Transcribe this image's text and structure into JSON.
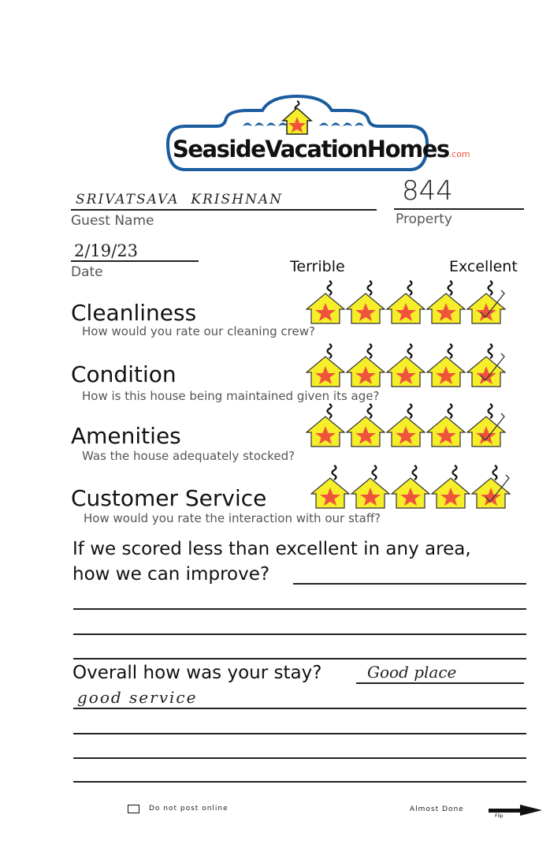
{
  "logo": {
    "brand": "SeasideVacationHomes",
    "suffix": ".com"
  },
  "guest": {
    "name_value": "SRIVATSAVA  KRISHNAN",
    "name_label": "Guest Name",
    "property_value": "844",
    "property_label": "Property",
    "date_value": "2/19/23",
    "date_label": "Date"
  },
  "scale": {
    "low": "Terrible",
    "high": "Excellent"
  },
  "ratings": [
    {
      "title": "Cleanliness",
      "question": "How would you rate our cleaning crew?",
      "score": 5,
      "max": 5
    },
    {
      "title": "Condition",
      "question": "How is this house being maintained given its age?",
      "score": 5,
      "max": 5
    },
    {
      "title": "Amenities",
      "question": "Was the house adequately stocked?",
      "score": 5,
      "max": 5
    },
    {
      "title": "Customer Service",
      "question": "How would you rate the interaction with our staff?",
      "score": 5,
      "max": 5
    }
  ],
  "improve": {
    "line1": "If we scored less than excellent in any area,",
    "line2": "how we can improve?",
    "answer": ""
  },
  "overall": {
    "question": "Overall how was your stay?",
    "answer_line1": "Good place",
    "answer_line2": "good service"
  },
  "footer": {
    "checkbox_label": "Do not post online",
    "checked": false,
    "almost_done": "Almost Done",
    "flip": "Flip"
  },
  "colors": {
    "logo_blue": "#1a5c9e",
    "house_yellow": "#f7ee2a",
    "star_red": "#f0533c"
  }
}
